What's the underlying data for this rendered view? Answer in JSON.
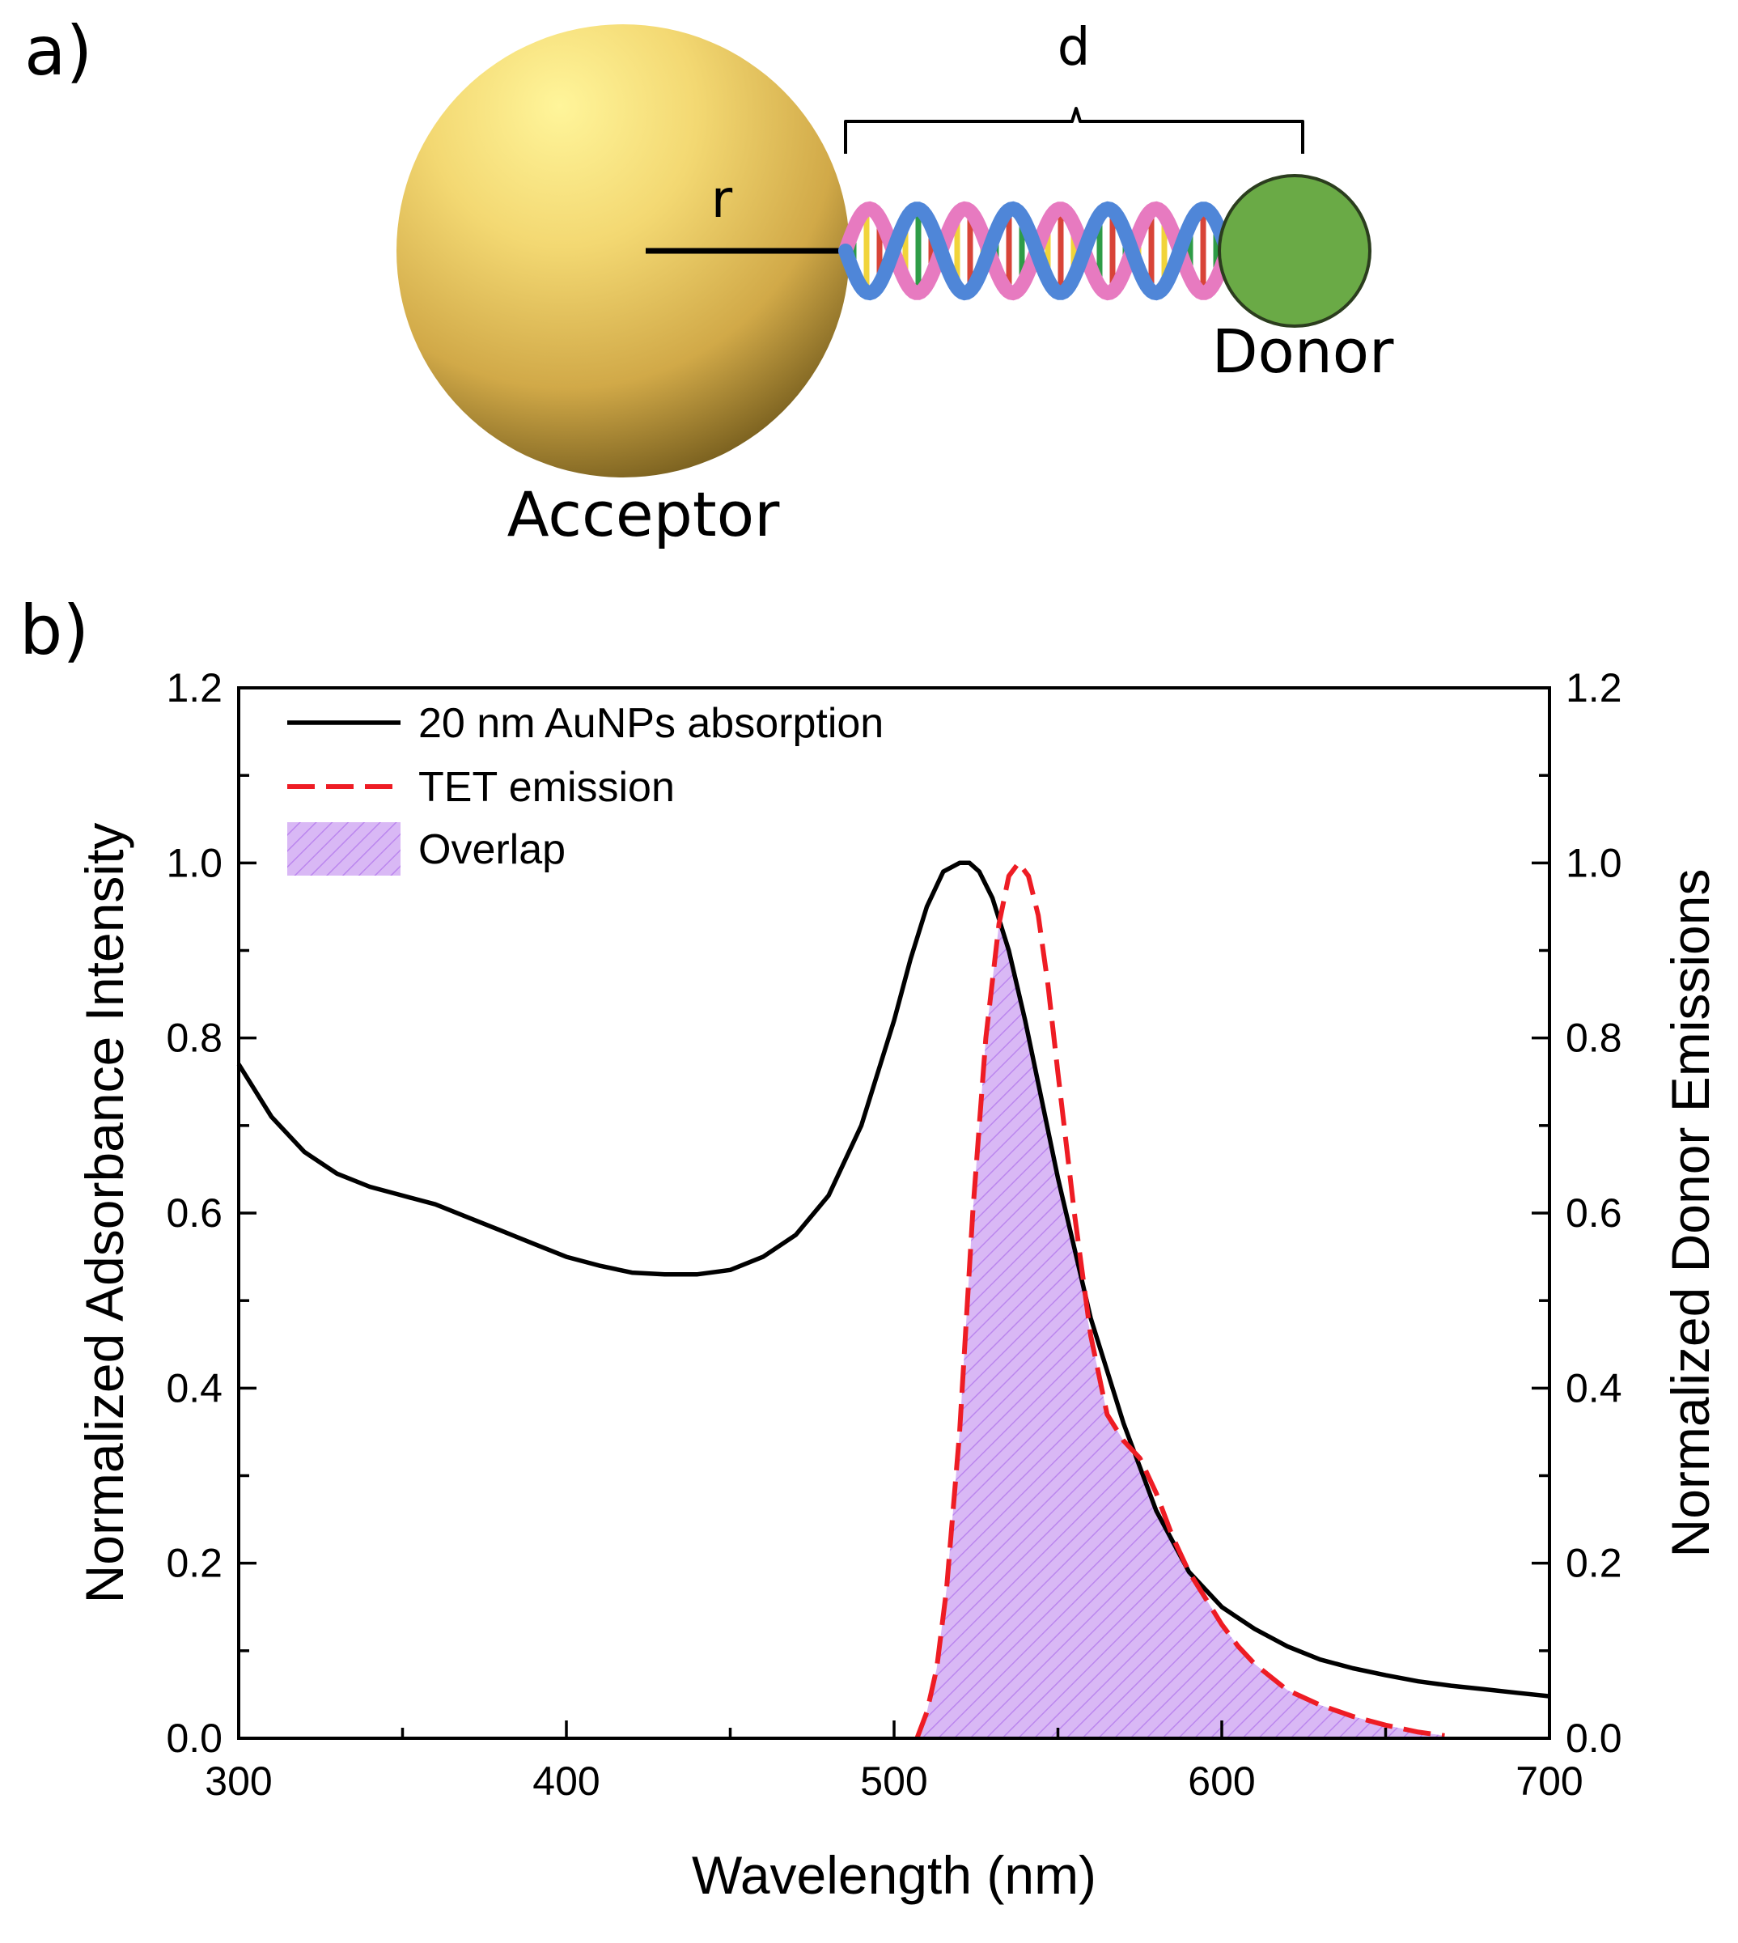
{
  "panel_a": {
    "label": "a)",
    "distance_label": "d",
    "radius_label": "r",
    "donor_label": "Donor",
    "acceptor_label": "Acceptor"
  },
  "panel_b": {
    "label": "b)"
  },
  "colors": {
    "gold_light": "#fff59a",
    "gold_mid": "#e8c35c",
    "gold_dark": "#6b5418",
    "donor_green": "#6aaa46",
    "absorption_line": "#000000",
    "emission_line": "#ee1c24",
    "overlap_fill": "#d9b8f5",
    "overlap_hatch": "#bb86ee",
    "dna_blue": "#4f86d8",
    "dna_pink": "#e77ac0"
  },
  "chart_data": {
    "type": "line",
    "xlabel": "Wavelength (nm)",
    "ylabel": "Normalized Adsorbance Intensity",
    "y2label": "Normalized Donor Emissions",
    "xlim": [
      300,
      700
    ],
    "ylim": [
      0,
      1.2
    ],
    "y2lim": [
      0,
      1.2
    ],
    "x_ticks": [
      300,
      400,
      500,
      600,
      700
    ],
    "y_ticks": [
      "0.0",
      "0.2",
      "0.4",
      "0.6",
      "0.8",
      "1.0",
      "1.2"
    ],
    "y2_ticks": [
      "0.0",
      "0.2",
      "0.4",
      "0.6",
      "0.8",
      "1.0",
      "1.2"
    ],
    "legend_position": "top-left",
    "series": [
      {
        "name": "20 nm AuNPs absorption",
        "style": "solid",
        "x": [
          300,
          310,
          320,
          330,
          340,
          350,
          360,
          370,
          380,
          390,
          400,
          410,
          420,
          430,
          440,
          450,
          460,
          470,
          480,
          490,
          500,
          505,
          510,
          515,
          520,
          523,
          526,
          530,
          535,
          540,
          545,
          550,
          555,
          560,
          570,
          580,
          590,
          600,
          610,
          620,
          630,
          640,
          650,
          660,
          670,
          680,
          690,
          700
        ],
        "y": [
          0.77,
          0.71,
          0.67,
          0.645,
          0.63,
          0.62,
          0.61,
          0.595,
          0.58,
          0.565,
          0.55,
          0.54,
          0.532,
          0.53,
          0.53,
          0.535,
          0.55,
          0.575,
          0.62,
          0.7,
          0.82,
          0.89,
          0.95,
          0.99,
          1.0,
          1.0,
          0.99,
          0.96,
          0.9,
          0.82,
          0.73,
          0.64,
          0.56,
          0.48,
          0.36,
          0.26,
          0.19,
          0.15,
          0.125,
          0.105,
          0.09,
          0.08,
          0.072,
          0.065,
          0.06,
          0.056,
          0.052,
          0.048
        ]
      },
      {
        "name": "TET emission",
        "style": "dashed",
        "x": [
          507,
          510,
          513,
          516,
          520,
          524,
          528,
          532,
          535,
          538,
          541,
          544,
          547,
          550,
          555,
          560,
          565,
          570,
          575,
          580,
          585,
          590,
          595,
          600,
          605,
          610,
          620,
          630,
          640,
          650,
          660,
          668
        ],
        "y": [
          0.0,
          0.03,
          0.08,
          0.17,
          0.35,
          0.6,
          0.8,
          0.93,
          0.985,
          1.0,
          0.985,
          0.94,
          0.86,
          0.76,
          0.6,
          0.46,
          0.37,
          0.34,
          0.32,
          0.28,
          0.23,
          0.19,
          0.16,
          0.13,
          0.105,
          0.085,
          0.055,
          0.038,
          0.025,
          0.015,
          0.007,
          0.003
        ]
      }
    ],
    "overlap": {
      "name": "Overlap",
      "x": [
        507,
        510,
        513,
        516,
        520,
        524,
        528,
        532,
        535,
        538,
        541,
        544,
        547,
        550,
        555,
        560,
        565,
        570,
        575,
        580,
        585,
        590,
        595,
        600,
        605,
        610,
        620,
        630,
        640,
        650,
        660,
        668
      ],
      "y": [
        0.0,
        0.03,
        0.08,
        0.17,
        0.35,
        0.6,
        0.8,
        0.93,
        0.9,
        0.852,
        0.796,
        0.74,
        0.684,
        0.64,
        0.56,
        0.46,
        0.37,
        0.34,
        0.31,
        0.26,
        0.225,
        0.19,
        0.16,
        0.13,
        0.105,
        0.085,
        0.055,
        0.038,
        0.025,
        0.015,
        0.007,
        0.003
      ]
    }
  }
}
